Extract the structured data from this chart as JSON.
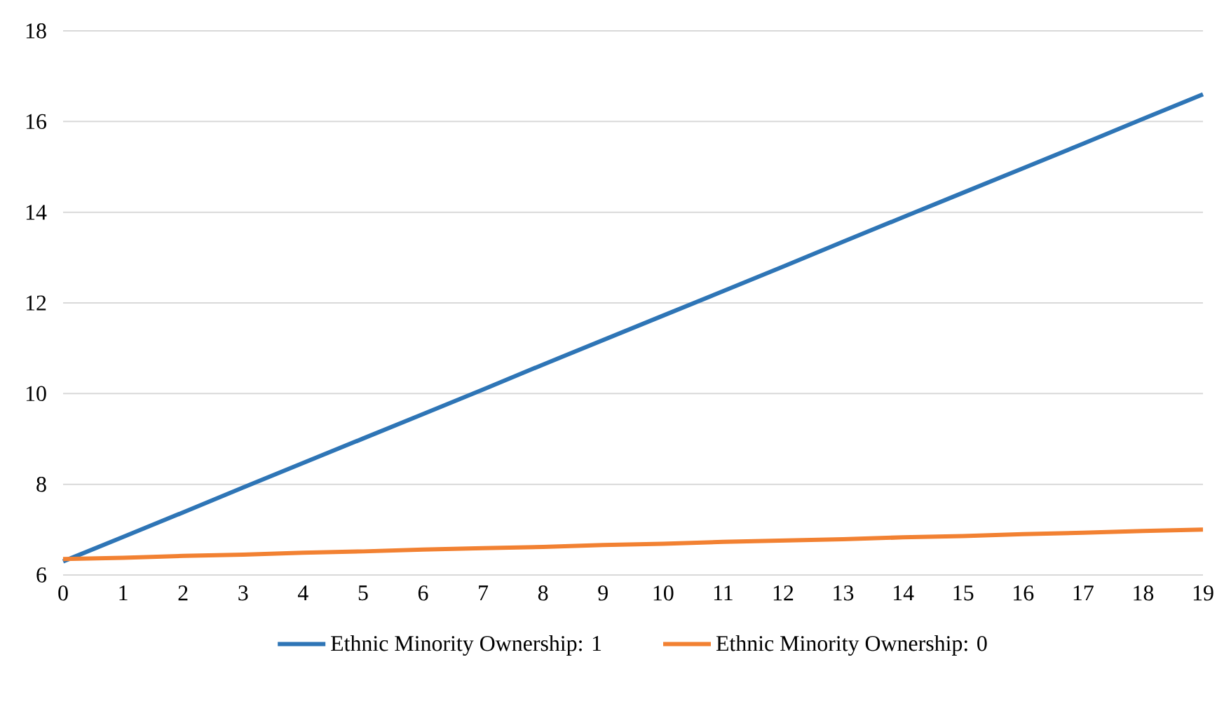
{
  "chart_data": {
    "type": "line",
    "categories": [
      "0",
      "1",
      "2",
      "3",
      "4",
      "5",
      "6",
      "7",
      "8",
      "9",
      "10",
      "11",
      "12",
      "13",
      "14",
      "15",
      "16",
      "17",
      "18",
      "19"
    ],
    "series": [
      {
        "name": "Ethnic Minority Ownership: 1",
        "color": "#2e75b6",
        "values": [
          6.3,
          6.84,
          7.38,
          7.93,
          8.47,
          9.01,
          9.55,
          10.09,
          10.64,
          11.18,
          11.72,
          12.26,
          12.8,
          13.35,
          13.89,
          14.43,
          14.97,
          15.51,
          16.06,
          16.6
        ]
      },
      {
        "name": "Ethnic Minority Ownership: 0",
        "color": "#f28132",
        "values": [
          6.35,
          6.38,
          6.42,
          6.45,
          6.49,
          6.52,
          6.56,
          6.59,
          6.62,
          6.66,
          6.69,
          6.73,
          6.76,
          6.79,
          6.83,
          6.86,
          6.9,
          6.93,
          6.97,
          7.0
        ]
      }
    ],
    "ylim": [
      6,
      18
    ],
    "yticks": [
      6,
      8,
      10,
      12,
      14,
      16,
      18
    ],
    "grid": "y",
    "legend": "bottom",
    "marker": "none",
    "line_style": "solid"
  }
}
